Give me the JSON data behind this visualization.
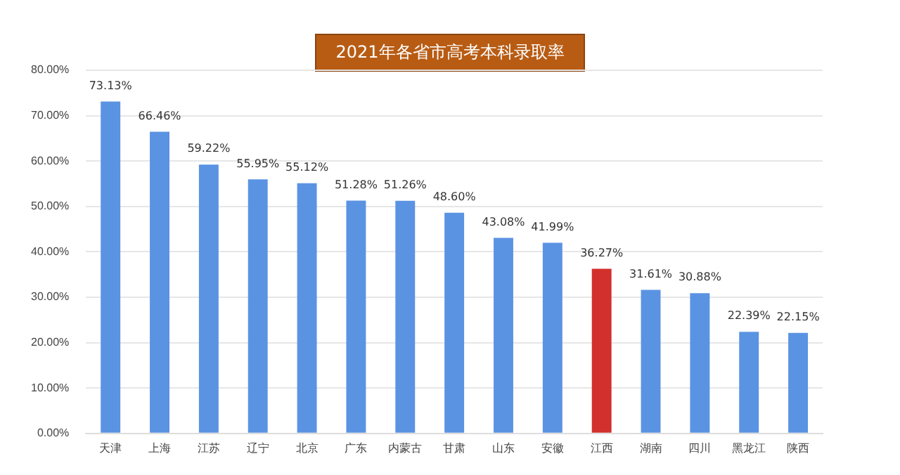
{
  "chart_data": {
    "type": "bar",
    "title": "2021年各省市高考本科录取率",
    "categories": [
      "天津",
      "上海",
      "江苏",
      "辽宁",
      "北京",
      "广东",
      "内蒙古",
      "甘肃",
      "山东",
      "安徽",
      "江西",
      "湖南",
      "四川",
      "黑龙江",
      "陕西"
    ],
    "values": [
      73.13,
      66.46,
      59.22,
      55.95,
      55.12,
      51.28,
      51.26,
      48.6,
      43.08,
      41.99,
      36.27,
      31.61,
      30.88,
      22.39,
      22.15
    ],
    "value_labels": [
      "73.13%",
      "66.46%",
      "59.22%",
      "55.95%",
      "55.12%",
      "51.28%",
      "51.26%",
      "48.60%",
      "43.08%",
      "41.99%",
      "36.27%",
      "31.61%",
      "30.88%",
      "22.39%",
      "22.15%"
    ],
    "colors": [
      "#5b93e3",
      "#5b93e3",
      "#5b93e3",
      "#5b93e3",
      "#5b93e3",
      "#5b93e3",
      "#5b93e3",
      "#5b93e3",
      "#5b93e3",
      "#5b93e3",
      "#d1302c",
      "#5b93e3",
      "#5b93e3",
      "#5b93e3",
      "#5b93e3"
    ],
    "ylim": [
      0,
      80
    ],
    "yticks": [
      {
        "value": 0,
        "label": "0.00%"
      },
      {
        "value": 10,
        "label": "10.00%"
      },
      {
        "value": 20,
        "label": "20.00%"
      },
      {
        "value": 30,
        "label": "30.00%"
      },
      {
        "value": 40,
        "label": "40.00%"
      },
      {
        "value": 50,
        "label": "50.00%"
      },
      {
        "value": 60,
        "label": "60.00%"
      },
      {
        "value": 70,
        "label": "70.00%"
      },
      {
        "value": 80,
        "label": "80.00%"
      }
    ],
    "grid": "y"
  }
}
